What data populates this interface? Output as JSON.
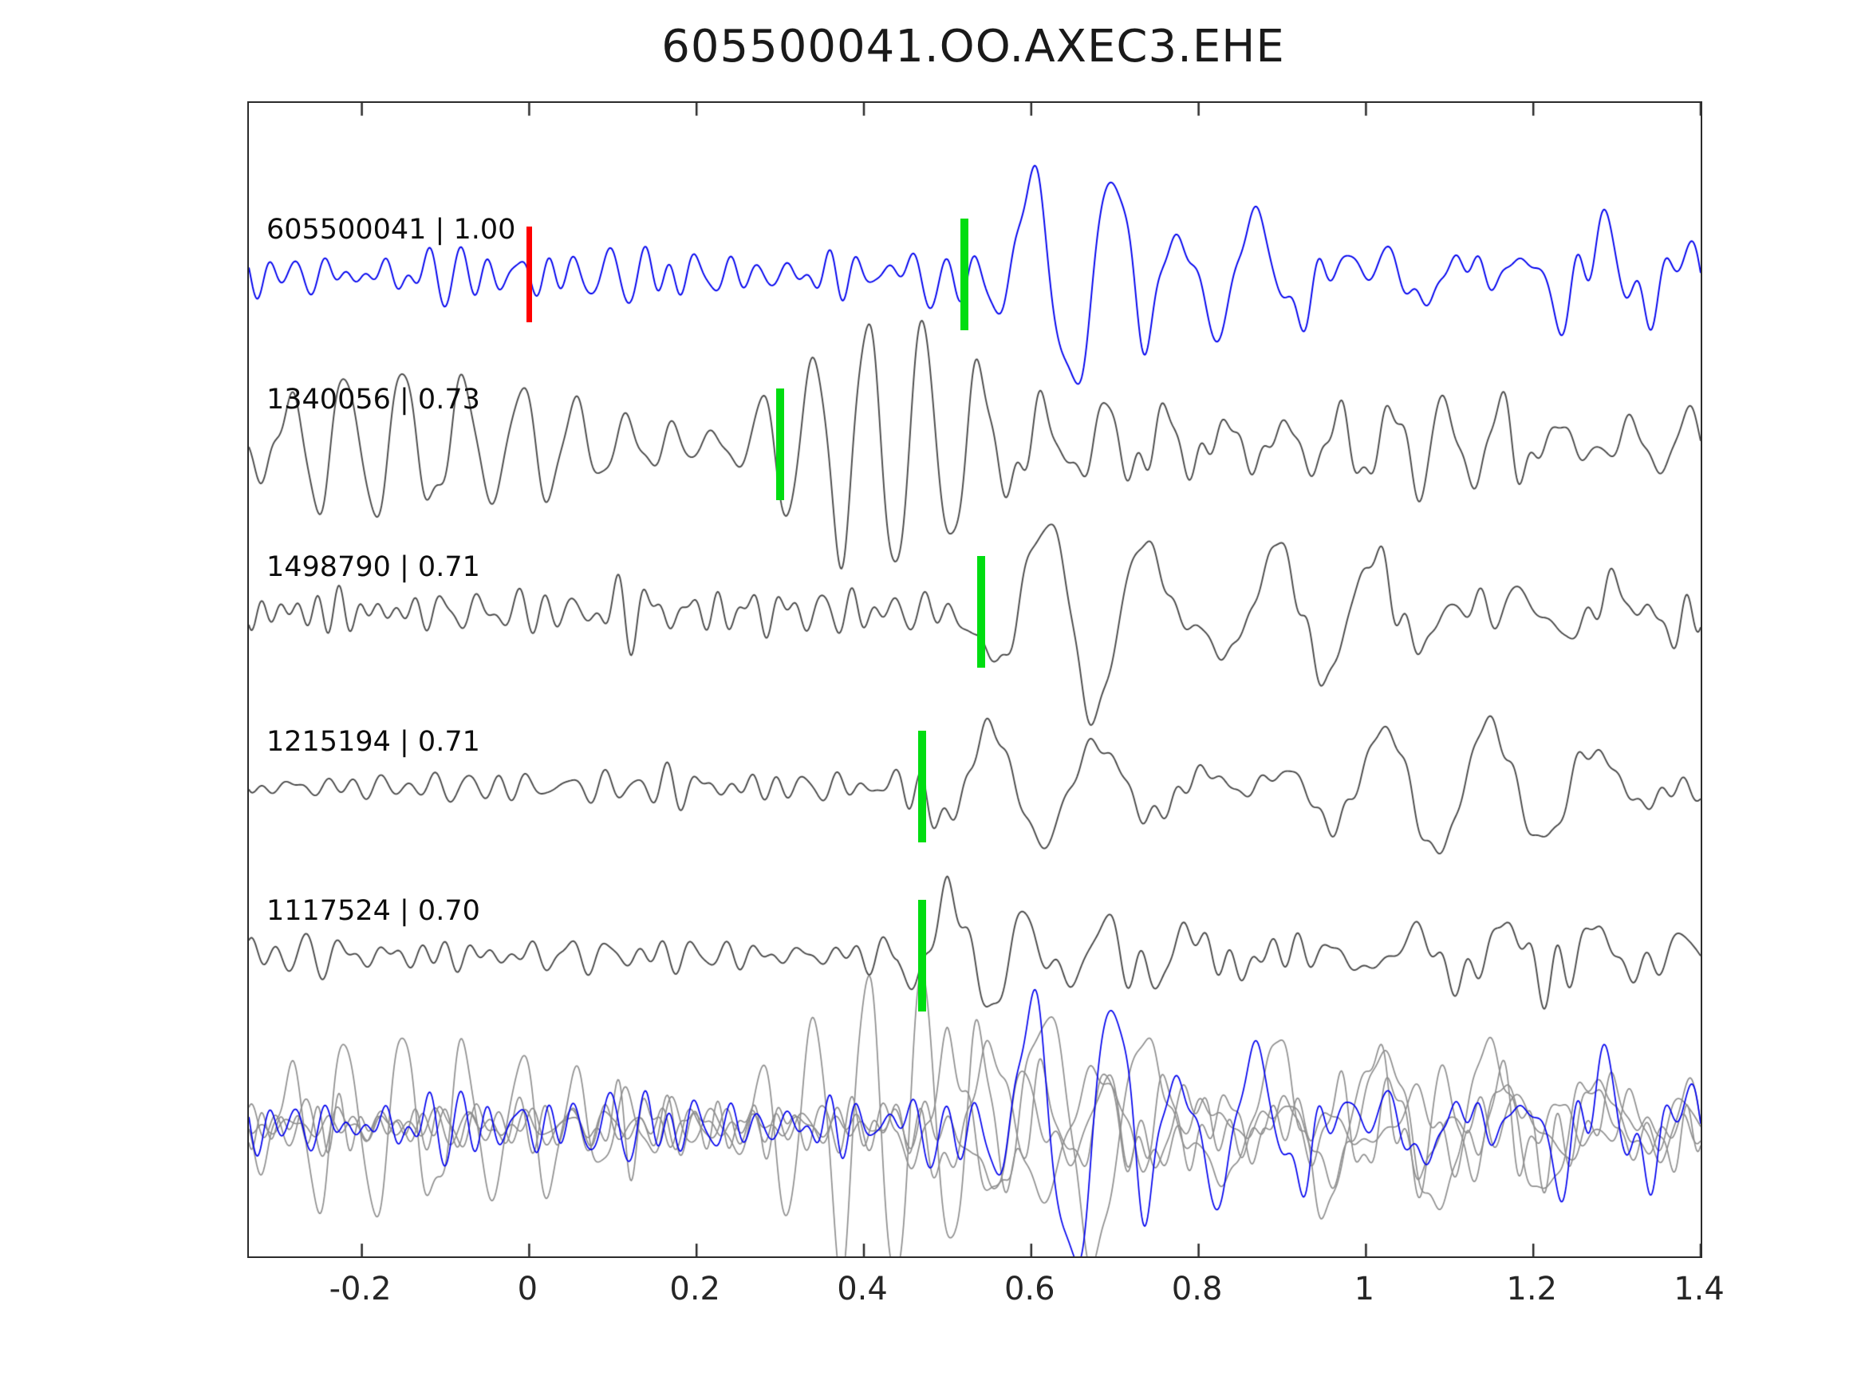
{
  "title": "605500041.OO.AXEC3.EHE",
  "chart_data": {
    "type": "line",
    "title": "605500041.OO.AXEC3.EHE",
    "subtitle": "",
    "xlabel": "",
    "ylabel": "",
    "xlim": [
      -0.335,
      1.4
    ],
    "grid": false,
    "legend": "none",
    "x_ticks": {
      "values": [
        -0.2,
        0,
        0.2,
        0.4,
        0.6,
        0.8,
        1,
        1.2,
        1.4
      ],
      "labels": [
        "-0.2",
        "0",
        "0.2",
        "0.4",
        "0.6",
        "0.8",
        "1",
        "1.2",
        "1.4"
      ]
    },
    "colors": {
      "template": "#0000ee",
      "match": "#4a4a4a",
      "overlay_gray": "#8f8f8f",
      "pick": "#00dd11",
      "origin": "#ff0000",
      "axis": "#2b2b2b"
    },
    "traces": [
      {
        "id": "605500041",
        "correlation": 1.0,
        "label": "605500041 | 1.00",
        "color_role": "template",
        "y_frac": 0.149,
        "picks": [
          {
            "x": 0.0,
            "color_role": "origin"
          },
          {
            "x": 0.52,
            "color_role": "pick"
          }
        ],
        "synth": {
          "seed": 11,
          "bands": [
            {
              "fmin": 16,
              "fmax": 42,
              "ncomp": 12,
              "scale": 0.03,
              "env": [
                [
                  -0.335,
                  0.9
                ],
                [
                  0.4,
                  0.9
                ],
                [
                  0.5,
                  0.6
                ],
                [
                  1.4,
                  0.75
                ]
              ]
            },
            {
              "fmin": 7,
              "fmax": 13,
              "ncomp": 5,
              "scale": 0.062,
              "env": [
                [
                  0.42,
                  0
                ],
                [
                  0.5,
                  0.35
                ],
                [
                  0.58,
                  1
                ],
                [
                  0.72,
                  1
                ],
                [
                  0.85,
                  0.5
                ],
                [
                  1.05,
                  0.45
                ],
                [
                  1.4,
                  0.3
                ]
              ]
            }
          ]
        }
      },
      {
        "id": "1340056",
        "correlation": 0.73,
        "label": "1340056 | 0.73",
        "color_role": "match",
        "y_frac": 0.296,
        "picks": [
          {
            "x": 0.3,
            "color_role": "pick"
          }
        ],
        "synth": {
          "seed": 22,
          "bands": [
            {
              "fmin": 13,
              "fmax": 20,
              "ncomp": 5,
              "scale": 0.055,
              "env": [
                [
                  -0.335,
                  0.35
                ],
                [
                  -0.15,
                  0.8
                ],
                [
                  0.0,
                  1
                ],
                [
                  0.3,
                  1
                ],
                [
                  0.5,
                  0.95
                ],
                [
                  0.65,
                  0.6
                ],
                [
                  0.9,
                  0.45
                ],
                [
                  1.4,
                  0.35
                ]
              ]
            },
            {
              "fmin": 25,
              "fmax": 45,
              "ncomp": 8,
              "scale": 0.012,
              "env": [
                [
                  -0.335,
                  1
                ],
                [
                  1.4,
                  1
                ]
              ]
            }
          ]
        }
      },
      {
        "id": "1498790",
        "correlation": 0.71,
        "label": "1498790 | 0.71",
        "color_role": "match",
        "y_frac": 0.441,
        "picks": [
          {
            "x": 0.54,
            "color_role": "pick"
          }
        ],
        "synth": {
          "seed": 33,
          "bands": [
            {
              "fmin": 18,
              "fmax": 45,
              "ncomp": 12,
              "scale": 0.02,
              "env": [
                [
                  -0.335,
                  1
                ],
                [
                  0.5,
                  1
                ],
                [
                  0.65,
                  0.5
                ],
                [
                  1.4,
                  0.8
                ]
              ]
            },
            {
              "fmin": 6.5,
              "fmax": 11,
              "ncomp": 5,
              "scale": 0.075,
              "env": [
                [
                  0.48,
                  0
                ],
                [
                  0.56,
                  0.9
                ],
                [
                  0.68,
                  1
                ],
                [
                  0.8,
                  0.75
                ],
                [
                  0.95,
                  0.45
                ],
                [
                  1.4,
                  0.18
                ]
              ]
            }
          ]
        }
      },
      {
        "id": "1215194",
        "correlation": 0.71,
        "label": "1215194 | 0.71",
        "color_role": "match",
        "y_frac": 0.593,
        "picks": [
          {
            "x": 0.47,
            "color_role": "pick"
          }
        ],
        "synth": {
          "seed": 44,
          "bands": [
            {
              "fmin": 18,
              "fmax": 40,
              "ncomp": 12,
              "scale": 0.018,
              "env": [
                [
                  -0.335,
                  1
                ],
                [
                  0.45,
                  1
                ],
                [
                  0.6,
                  0.4
                ],
                [
                  1.4,
                  0.6
                ]
              ]
            },
            {
              "fmin": 5.5,
              "fmax": 9.5,
              "ncomp": 5,
              "scale": 0.08,
              "env": [
                [
                  0.44,
                  0
                ],
                [
                  0.5,
                  0.6
                ],
                [
                  0.56,
                  1
                ],
                [
                  0.75,
                  1
                ],
                [
                  0.95,
                  0.8
                ],
                [
                  1.15,
                  0.5
                ],
                [
                  1.4,
                  0.35
                ]
              ]
            }
          ]
        }
      },
      {
        "id": "1117524",
        "correlation": 0.7,
        "label": "1117524 | 0.70",
        "color_role": "match",
        "y_frac": 0.739,
        "picks": [
          {
            "x": 0.47,
            "color_role": "pick"
          }
        ],
        "synth": {
          "seed": 55,
          "bands": [
            {
              "fmin": 18,
              "fmax": 42,
              "ncomp": 12,
              "scale": 0.02,
              "env": [
                [
                  -0.335,
                  1
                ],
                [
                  0.45,
                  1
                ],
                [
                  1.4,
                  0.9
                ]
              ]
            },
            {
              "fmin": 7,
              "fmax": 12,
              "ncomp": 5,
              "scale": 0.07,
              "env": [
                [
                  0.44,
                  0
                ],
                [
                  0.5,
                  0.9
                ],
                [
                  0.58,
                  1
                ],
                [
                  0.68,
                  0.5
                ],
                [
                  0.85,
                  0.35
                ],
                [
                  1.4,
                  0.2
                ]
              ]
            }
          ]
        }
      }
    ],
    "overlay": {
      "y_frac": 0.887,
      "amp_scale": 1.25
    }
  }
}
